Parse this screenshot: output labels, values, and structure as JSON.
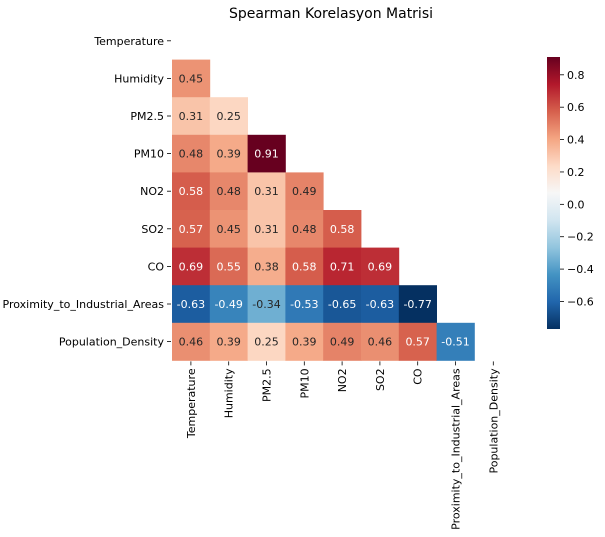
{
  "chart_data": {
    "type": "heatmap",
    "title": "Spearman Korelasyon Matrisi",
    "xlabel": "",
    "ylabel": "",
    "mask": "upper-triangle-including-diagonal",
    "variables": [
      "Temperature",
      "Humidity",
      "PM2.5",
      "PM10",
      "NO2",
      "SO2",
      "CO",
      "Proximity_to_Industrial_Areas",
      "Population_Density"
    ],
    "lower_triangle": [
      [],
      [
        0.45
      ],
      [
        0.31,
        0.25
      ],
      [
        0.48,
        0.39,
        0.91
      ],
      [
        0.58,
        0.48,
        0.31,
        0.49
      ],
      [
        0.57,
        0.45,
        0.31,
        0.48,
        0.58
      ],
      [
        0.69,
        0.55,
        0.38,
        0.58,
        0.71,
        0.69
      ],
      [
        -0.63,
        -0.49,
        -0.34,
        -0.53,
        -0.65,
        -0.63,
        -0.77
      ],
      [
        0.46,
        0.39,
        0.25,
        0.39,
        0.49,
        0.46,
        0.57,
        -0.51
      ]
    ],
    "value_labels": [
      [],
      [
        "0.45"
      ],
      [
        "0.31",
        "0.25"
      ],
      [
        "0.48",
        "0.39",
        "0.91"
      ],
      [
        "0.58",
        "0.48",
        "0.31",
        "0.49"
      ],
      [
        "0.57",
        "0.45",
        "0.31",
        "0.48",
        "0.58"
      ],
      [
        "0.69",
        "0.55",
        "0.38",
        "0.58",
        "0.71",
        "0.69"
      ],
      [
        "-0.63",
        "-0.49",
        "-0.34",
        "-0.53",
        "-0.65",
        "-0.63",
        "-0.77"
      ],
      [
        "0.46",
        "0.39",
        "0.25",
        "0.39",
        "0.49",
        "0.46",
        "0.57",
        "-0.51"
      ]
    ],
    "colorbar": {
      "colormap": "RdBu_r",
      "vmin": -0.77,
      "vmax": 0.91,
      "ticks": [
        0.8,
        0.6,
        0.4,
        0.2,
        0.0,
        -0.2,
        -0.4,
        -0.6
      ],
      "tick_labels": [
        "0.8",
        "0.6",
        "0.4",
        "0.2",
        "0.0",
        "−0.2",
        "−0.4",
        "−0.6"
      ]
    },
    "colors": {
      "rdbu_stops": [
        "#053061",
        "#2166ac",
        "#4393c3",
        "#92c5de",
        "#d1e5f0",
        "#f7f7f7",
        "#fddbc7",
        "#f4a582",
        "#d6604d",
        "#b2182b",
        "#67001f"
      ]
    }
  }
}
